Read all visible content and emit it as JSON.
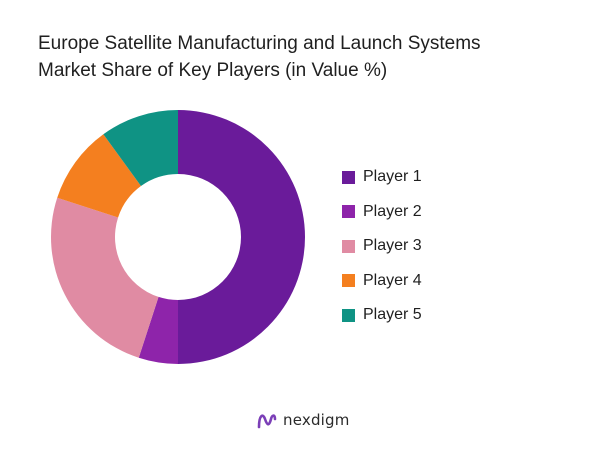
{
  "chart_data": {
    "type": "pie",
    "variant": "donut",
    "title_lines": [
      "Europe Satellite Manufacturing and Launch Systems",
      "Market Share of Key Players (in Value %)"
    ],
    "categories": [
      "Player 1",
      "Player 2",
      "Player 3",
      "Player 4",
      "Player 5"
    ],
    "values": [
      50,
      5,
      25,
      10,
      10
    ],
    "colors": [
      "#6a1b9a",
      "#8e24aa",
      "#e08ba3",
      "#f47f1f",
      "#0f9384"
    ],
    "legend_position": "right"
  },
  "brand": {
    "name": "nexdigm",
    "logo_icon": "nexdigm-logo-icon",
    "logo_color": "#7b3fb7"
  }
}
